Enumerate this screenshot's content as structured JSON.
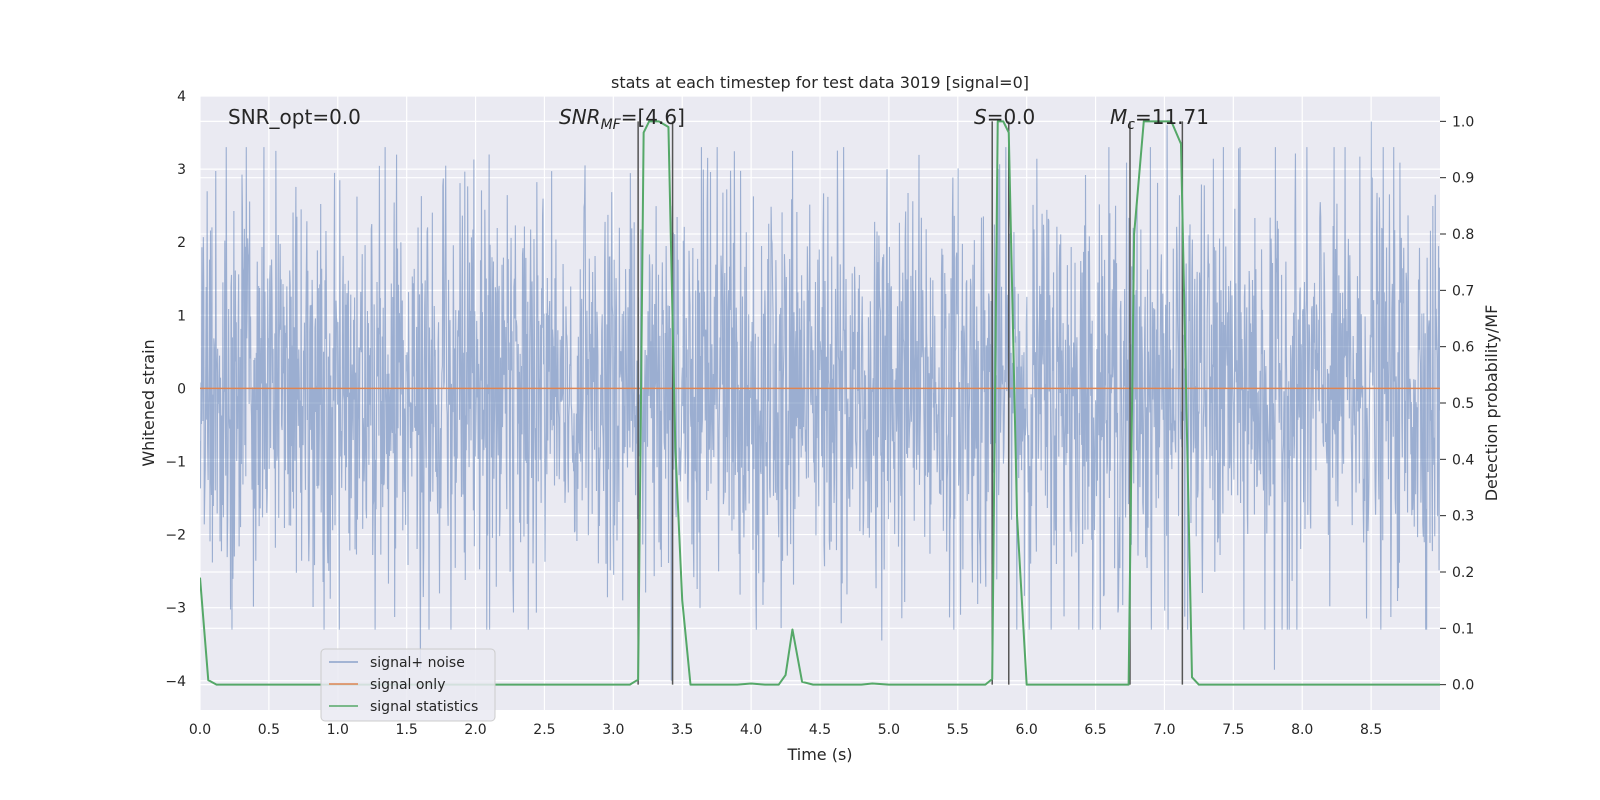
{
  "chart_data": {
    "type": "line",
    "title": "stats at each timestep for test data 3019 [signal=0]",
    "xlabel": "Time (s)",
    "ylabel": "Whitened strain",
    "ylabel_right": "Detection probability/MF",
    "xlim": [
      0.0,
      9.0
    ],
    "ylim": [
      -4.4,
      4.0
    ],
    "ylim_right": [
      -0.045,
      1.045
    ],
    "xticks": [
      "0.0",
      "0.5",
      "1.0",
      "1.5",
      "2.0",
      "2.5",
      "3.0",
      "3.5",
      "4.0",
      "4.5",
      "5.0",
      "5.5",
      "6.0",
      "6.5",
      "7.0",
      "7.5",
      "8.0",
      "8.5"
    ],
    "yticks": [
      "4",
      "3",
      "2",
      "1",
      "0",
      "−1",
      "−2",
      "−3",
      "−4"
    ],
    "yticks_right": [
      "1.0",
      "0.9",
      "0.8",
      "0.7",
      "0.6",
      "0.5",
      "0.4",
      "0.3",
      "0.2",
      "0.1",
      "0.0"
    ],
    "grid": true,
    "legend_position": "lower-left",
    "annotations": {
      "snr_opt": "SNR_opt=0.0",
      "snr_mf_main": "SNR",
      "snr_mf_sub": "MF",
      "snr_mf_value": "=[4.6]",
      "s_main": "S",
      "s_value": "=0.0",
      "mc_main": "M",
      "mc_sub": "c",
      "mc_value": "=11.71"
    },
    "colors": {
      "background": "#eaeaf2",
      "grid": "#ffffff",
      "noise": "#4c72b0",
      "signal": "#dd8452",
      "statistics": "#55a868",
      "vlines": "#555555"
    },
    "series": [
      {
        "name": "signal+ noise",
        "noise_amplitude": 1.4,
        "peaks": [
          [
            0.55,
            3.25
          ],
          [
            1.6,
            -3.85
          ],
          [
            2.1,
            3.2
          ],
          [
            3.42,
            -4.0
          ],
          [
            4.3,
            3.25
          ],
          [
            4.95,
            -3.45
          ],
          [
            7.02,
            3.6
          ],
          [
            7.8,
            -3.85
          ],
          [
            8.5,
            3.65
          ]
        ]
      },
      {
        "name": "signal only",
        "x": [
          0.0,
          9.0
        ],
        "y": [
          0.0,
          0.0
        ]
      },
      {
        "name": "signal statistics",
        "x": [
          0.0,
          0.06,
          0.12,
          0.5,
          1.0,
          2.0,
          3.0,
          3.12,
          3.18,
          3.22,
          3.26,
          3.33,
          3.4,
          3.45,
          3.5,
          3.56,
          3.7,
          3.9,
          4.0,
          4.1,
          4.2,
          4.25,
          4.3,
          4.37,
          4.45,
          4.6,
          4.8,
          4.88,
          5.0,
          5.5,
          5.7,
          5.75,
          5.79,
          5.83,
          5.87,
          5.93,
          6.0,
          6.2,
          6.5,
          6.74,
          6.78,
          6.85,
          7.0,
          7.05,
          7.12,
          7.2,
          7.25,
          7.5,
          8.0,
          8.5,
          9.0
        ],
        "y": [
          0.19,
          0.008,
          0.0,
          0.0,
          0.0,
          0.0,
          0.0,
          0.0,
          0.009,
          0.98,
          1.0,
          1.0,
          0.99,
          0.42,
          0.15,
          0.0,
          0.0,
          0.0,
          0.002,
          0.0,
          0.0,
          0.017,
          0.098,
          0.005,
          0.0,
          0.0,
          0.0,
          0.002,
          0.0,
          0.0,
          0.0,
          0.01,
          1.0,
          1.0,
          0.98,
          0.3,
          0.0,
          0.0,
          0.0,
          0.0,
          0.8,
          1.0,
          1.0,
          1.0,
          0.96,
          0.013,
          0.0,
          0.0,
          0.0,
          0.0,
          0.0
        ]
      }
    ],
    "vlines": [
      3.18,
      3.43,
      5.75,
      5.87,
      6.75,
      7.13
    ]
  }
}
